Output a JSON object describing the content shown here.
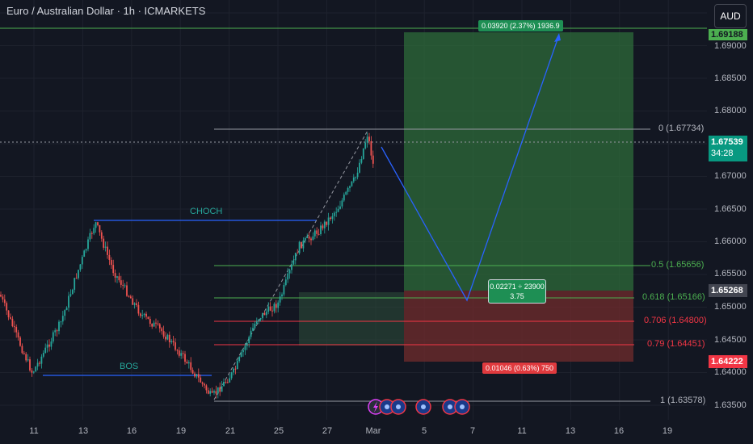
{
  "header": {
    "title": "Euro / Australian Dollar · 1h · ICMARKETS"
  },
  "currency_button": {
    "label": "AUD"
  },
  "price_axis": {
    "ticks": [
      "1.69000",
      "1.68500",
      "1.68000",
      "1.67000",
      "1.66500",
      "1.66000",
      "1.65500",
      "1.65000",
      "1.64500",
      "1.64000",
      "1.63500"
    ],
    "badges": {
      "target": "1.69188",
      "current_price": "1.67539",
      "countdown": "34:28",
      "entry": "1.65268",
      "stop": "1.64222"
    }
  },
  "time_axis": {
    "ticks": [
      "11",
      "13",
      "16",
      "19",
      "21",
      "25",
      "27",
      "Mar",
      "5",
      "7",
      "11",
      "13",
      "16",
      "19"
    ]
  },
  "fib_levels": [
    {
      "label": "0 (1.67734)",
      "color": "#b2b5be"
    },
    {
      "label": "0.5 (1.65656)",
      "color": "#4caf50"
    },
    {
      "label": "0.618 (1.65166)",
      "color": "#4caf50"
    },
    {
      "label": "0.706 (1.64800)",
      "color": "#f23645"
    },
    {
      "label": "0.79 (1.64451)",
      "color": "#f23645"
    },
    {
      "label": "1 (1.63578)",
      "color": "#b2b5be"
    }
  ],
  "annotations": {
    "choch": "CHOCH",
    "bos": "BOS"
  },
  "position": {
    "target_label": "0.03920 (2.37%) 1936.9",
    "stop_label": "0.01046 (0.63%) 750",
    "center_line1": "0.02271 ÷ 23900",
    "center_line2": "3.75"
  },
  "colors": {
    "background": "#131722",
    "up": "#26a69a",
    "down": "#ef5350",
    "profit_zone": "#2e6b3a",
    "loss_zone": "#6b2a2c",
    "path": "#2962ff",
    "fib_green": "#4caf50",
    "fib_red": "#f23645"
  },
  "icons": [
    "flash-icon",
    "australia-flag-icon",
    "australia-flag-icon",
    "australia-flag-icon",
    "australia-flag-icon",
    "australia-flag-icon"
  ]
}
